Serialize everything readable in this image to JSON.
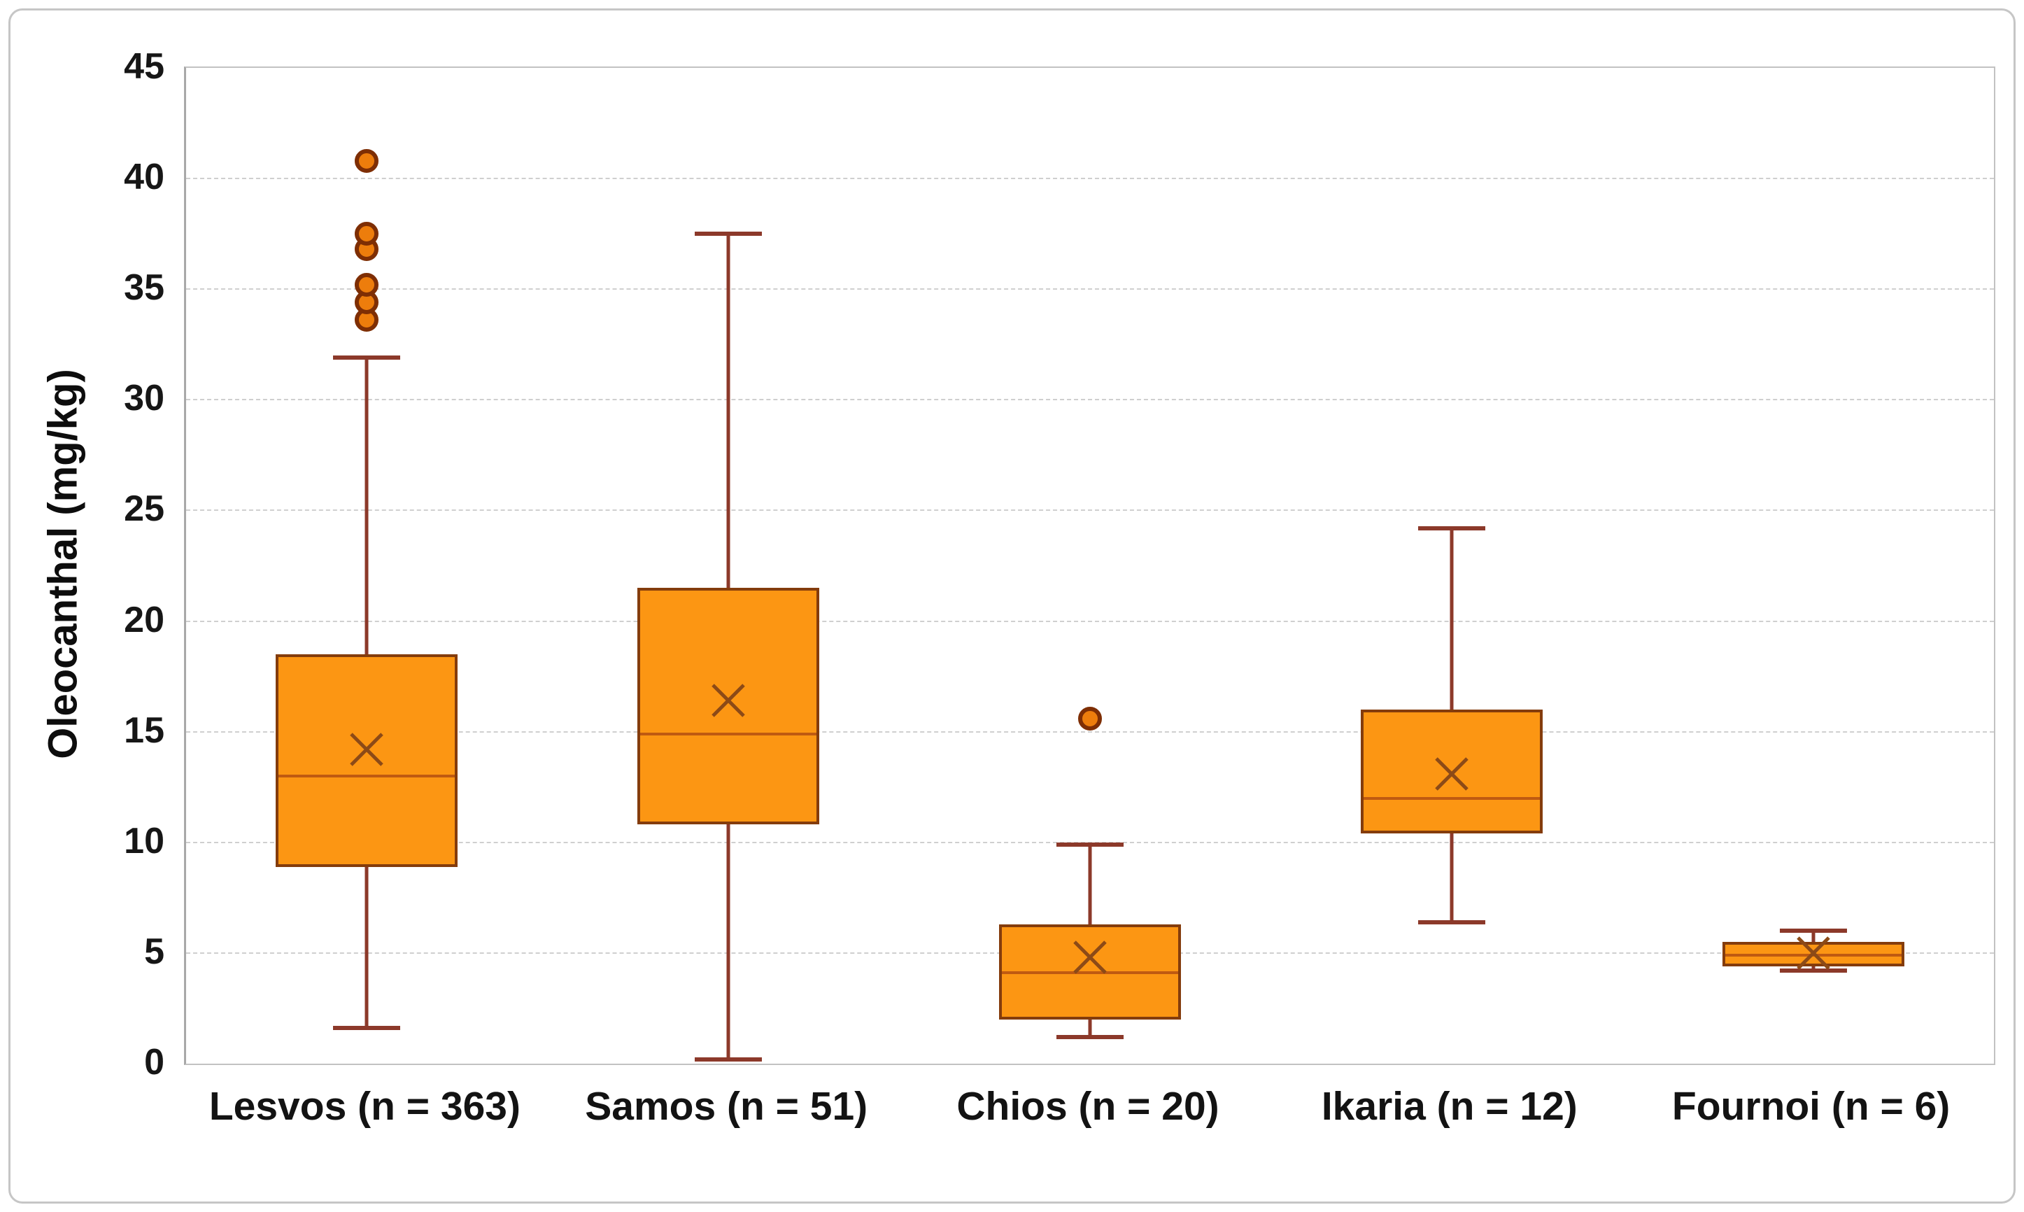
{
  "figure": {
    "kind": "excel-style box-and-whisker plot",
    "background": "#ffffff",
    "border_color": "#c6c6c6"
  },
  "colors": {
    "box_fill": "#fc9613",
    "box_border": "#843c0c",
    "median_line": "#bf5a11",
    "mean_marker": "#8c4a17",
    "whisker": "#8c392a",
    "outlier_fill": "#ed7d0c",
    "outlier_border": "#7e2e04",
    "gridline": "#cfcfcf",
    "axis_line": "#a8a8a8",
    "text": "#131313"
  },
  "chart_data": {
    "type": "boxplot",
    "title": "",
    "xlabel": "",
    "ylabel": "Oleocanthal (mg/kg)",
    "ylim": [
      0,
      45
    ],
    "ytick_step": 5,
    "ytick_labels": [
      "0",
      "5",
      "10",
      "15",
      "20",
      "25",
      "30",
      "35",
      "40",
      "45"
    ],
    "grid": true,
    "legend": "none",
    "categories": [
      "Lesvos (n = 363)",
      "Samos (n = 51)",
      "Chios (n = 20)",
      "Ikaria (n = 12)",
      "Fournoi (n = 6)"
    ],
    "series": [
      {
        "label": "Lesvos (n = 363)",
        "n": 363,
        "whisker_low": 1.6,
        "q1": 8.9,
        "median": 13.0,
        "mean": 14.2,
        "q3": 18.5,
        "whisker_high": 31.9,
        "outliers": [
          33.6,
          34.4,
          35.2,
          36.8,
          37.5,
          40.8
        ]
      },
      {
        "label": "Samos (n = 51)",
        "n": 51,
        "whisker_low": 0.2,
        "q1": 10.8,
        "median": 14.9,
        "mean": 16.4,
        "q3": 21.5,
        "whisker_high": 37.5,
        "outliers": []
      },
      {
        "label": "Chios (n = 20)",
        "n": 20,
        "whisker_low": 1.2,
        "q1": 2.0,
        "median": 4.1,
        "mean": 4.8,
        "q3": 6.3,
        "whisker_high": 9.9,
        "outliers": [
          15.6
        ]
      },
      {
        "label": "Ikaria (n = 12)",
        "n": 12,
        "whisker_low": 6.4,
        "q1": 10.4,
        "median": 12.0,
        "mean": 13.1,
        "q3": 16.0,
        "whisker_high": 24.2,
        "outliers": []
      },
      {
        "label": "Fournoi (n = 6)",
        "n": 6,
        "whisker_low": 4.2,
        "q1": 4.4,
        "median": 4.9,
        "mean": 5.0,
        "q3": 5.5,
        "whisker_high": 6.0,
        "outliers": []
      }
    ]
  }
}
